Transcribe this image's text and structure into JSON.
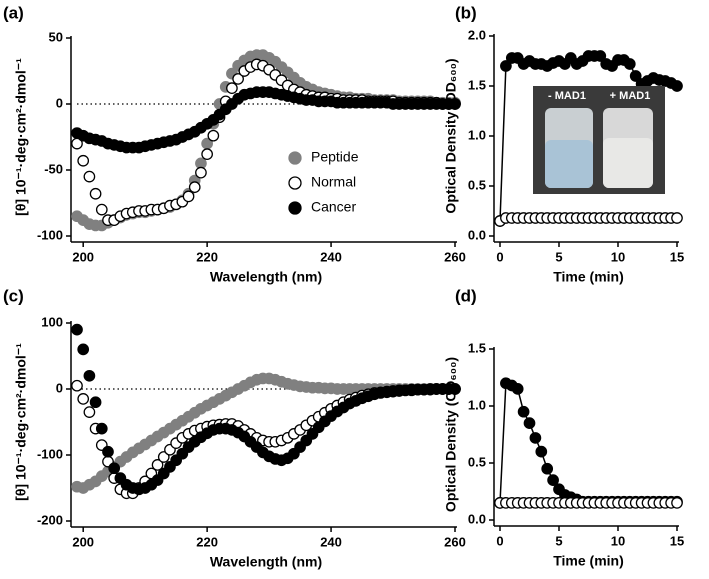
{
  "chart_data": [
    {
      "type": "scatter",
      "label": "(a)",
      "xlabel": "Wavelength (nm)",
      "ylabel": "[θ] 10⁻¹·deg·cm²·dmol⁻¹",
      "xlim": [
        199,
        260
      ],
      "ylim": [
        -100,
        50
      ],
      "xticks": [
        200,
        220,
        240,
        260
      ],
      "yticks": [
        -100,
        -50,
        0,
        50
      ],
      "reference_line": 0,
      "legend": "lower right",
      "x": [
        199,
        200,
        201,
        202,
        203,
        204,
        205,
        206,
        207,
        208,
        209,
        210,
        211,
        212,
        213,
        214,
        215,
        216,
        217,
        218,
        219,
        220,
        221,
        222,
        223,
        224,
        225,
        226,
        227,
        228,
        229,
        230,
        231,
        232,
        233,
        234,
        235,
        236,
        237,
        238,
        239,
        240,
        241,
        242,
        243,
        244,
        245,
        246,
        247,
        248,
        249,
        250,
        251,
        252,
        253,
        254,
        255,
        256,
        257,
        258,
        259,
        260
      ],
      "series": [
        {
          "name": "Peptide",
          "color": "#808080",
          "line": false,
          "values": [
            -85,
            -88,
            -91,
            -92,
            -92,
            -90,
            -88,
            -86,
            -84,
            -83,
            -82,
            -82,
            -81,
            -80,
            -79,
            -78,
            -76,
            -73,
            -68,
            -58,
            -45,
            -30,
            -15,
            0,
            13,
            23,
            29,
            33,
            36,
            37,
            37,
            35,
            32,
            28,
            24,
            20,
            16,
            13,
            11,
            9,
            8,
            7,
            6,
            5,
            5,
            4,
            4,
            4,
            3,
            3,
            3,
            3,
            2,
            2,
            2,
            2,
            2,
            2,
            1,
            1,
            1,
            1
          ]
        },
        {
          "name": "Normal",
          "color": "#ffffff",
          "line": false,
          "values": [
            -30,
            -43,
            -55,
            -68,
            -80,
            -88,
            -88,
            -85,
            -83,
            -82,
            -81,
            -81,
            -80,
            -80,
            -79,
            -77,
            -76,
            -74,
            -70,
            -63,
            -52,
            -38,
            -24,
            -10,
            2,
            12,
            19,
            25,
            28,
            30,
            29,
            26,
            22,
            18,
            14,
            11,
            9,
            7,
            6,
            5,
            5,
            4,
            4,
            3,
            3,
            3,
            3,
            2,
            2,
            2,
            2,
            2,
            1,
            1,
            1,
            1,
            1,
            1,
            1,
            0,
            0,
            0
          ]
        },
        {
          "name": "Cancer",
          "color": "#000000",
          "line": false,
          "values": [
            -22,
            -24,
            -26,
            -27,
            -28,
            -30,
            -31,
            -32,
            -33,
            -33,
            -33,
            -32,
            -31,
            -30,
            -29,
            -28,
            -27,
            -25,
            -23,
            -21,
            -18,
            -15,
            -12,
            -8,
            -4,
            0,
            4,
            7,
            8,
            9,
            9,
            9,
            8,
            7,
            6,
            5,
            4,
            3,
            3,
            2,
            2,
            2,
            1,
            1,
            1,
            1,
            1,
            1,
            1,
            1,
            1,
            0,
            0,
            0,
            0,
            0,
            0,
            0,
            0,
            0,
            0,
            0
          ]
        }
      ]
    },
    {
      "type": "scatter",
      "label": "(b)",
      "xlabel": "Time (min)",
      "ylabel": "Optical  Density  (OD₆₀₀)",
      "xlim": [
        0,
        15
      ],
      "ylim": [
        0,
        2
      ],
      "xticks": [
        0,
        5,
        10,
        15
      ],
      "yticks": [
        {
          "value": 0,
          "label": "0.0"
        },
        {
          "value": 0.5,
          "label": "0.5"
        },
        {
          "value": 1,
          "label": "1.0"
        },
        {
          "value": 1.5,
          "label": "1.5"
        },
        {
          "value": 2,
          "label": "2.0"
        }
      ],
      "inset_labels": [
        "- MAD1",
        "+ MAD1"
      ],
      "x": [
        0,
        0.5,
        1,
        1.5,
        2,
        2.5,
        3,
        3.5,
        4,
        4.5,
        5,
        5.5,
        6,
        6.5,
        7,
        7.5,
        8,
        8.5,
        9,
        9.5,
        10,
        10.5,
        11,
        11.5,
        12,
        12.5,
        13,
        13.5,
        14,
        14.5,
        15
      ],
      "series": [
        {
          "color": "#000000",
          "line": true,
          "values": [
            0.15,
            1.7,
            1.78,
            1.78,
            1.72,
            1.75,
            1.72,
            1.72,
            1.7,
            1.73,
            1.75,
            1.72,
            1.78,
            1.72,
            1.75,
            1.8,
            1.8,
            1.8,
            1.72,
            1.7,
            1.76,
            1.76,
            1.72,
            1.6,
            1.52,
            1.55,
            1.58,
            1.56,
            1.55,
            1.53,
            1.5
          ]
        },
        {
          "color": "#ffffff",
          "line": false,
          "values": [
            0.15,
            0.18,
            0.18,
            0.18,
            0.18,
            0.18,
            0.18,
            0.18,
            0.18,
            0.18,
            0.18,
            0.18,
            0.18,
            0.18,
            0.18,
            0.18,
            0.18,
            0.18,
            0.18,
            0.18,
            0.18,
            0.18,
            0.18,
            0.18,
            0.18,
            0.18,
            0.18,
            0.18,
            0.18,
            0.18,
            0.18
          ]
        }
      ]
    },
    {
      "type": "scatter",
      "label": "(c)",
      "xlabel": "Wavelength (nm)",
      "ylabel": "[θ] 10⁻¹·deg·cm²·dmol⁻¹",
      "xlim": [
        199,
        260
      ],
      "ylim": [
        -200,
        100
      ],
      "xticks": [
        200,
        220,
        240,
        260
      ],
      "yticks": [
        -200,
        -100,
        0,
        100
      ],
      "reference_line": 0,
      "x": [
        199,
        200,
        201,
        202,
        203,
        204,
        205,
        206,
        207,
        208,
        209,
        210,
        211,
        212,
        213,
        214,
        215,
        216,
        217,
        218,
        219,
        220,
        221,
        222,
        223,
        224,
        225,
        226,
        227,
        228,
        229,
        230,
        231,
        232,
        233,
        234,
        235,
        236,
        237,
        238,
        239,
        240,
        241,
        242,
        243,
        244,
        245,
        246,
        247,
        248,
        249,
        250,
        251,
        252,
        253,
        254,
        255,
        256,
        257,
        258,
        259,
        260
      ],
      "series": [
        {
          "color": "#808080",
          "line": false,
          "values": [
            -148,
            -150,
            -145,
            -140,
            -132,
            -125,
            -118,
            -110,
            -103,
            -96,
            -90,
            -84,
            -78,
            -72,
            -66,
            -60,
            -54,
            -48,
            -42,
            -36,
            -30,
            -25,
            -20,
            -15,
            -10,
            -5,
            0,
            5,
            10,
            14,
            16,
            16,
            14,
            11,
            8,
            6,
            4,
            3,
            2,
            2,
            1,
            1,
            0,
            0,
            0,
            0,
            0,
            0,
            0,
            0,
            0,
            0,
            0,
            0,
            0,
            0,
            0,
            0,
            0,
            0,
            0,
            0
          ]
        },
        {
          "color": "#ffffff",
          "line": false,
          "values": [
            5,
            -15,
            -35,
            -60,
            -85,
            -110,
            -135,
            -152,
            -158,
            -158,
            -150,
            -140,
            -128,
            -115,
            -103,
            -92,
            -82,
            -74,
            -68,
            -63,
            -60,
            -57,
            -55,
            -54,
            -53,
            -53,
            -56,
            -62,
            -68,
            -74,
            -78,
            -80,
            -80,
            -78,
            -74,
            -68,
            -62,
            -55,
            -48,
            -42,
            -36,
            -30,
            -25,
            -20,
            -16,
            -13,
            -10,
            -8,
            -6,
            -5,
            -4,
            -3,
            -2,
            -2,
            -1,
            -1,
            -1,
            0,
            0,
            0,
            0,
            0
          ]
        },
        {
          "color": "#000000",
          "line": false,
          "values": [
            90,
            60,
            20,
            -20,
            -60,
            -95,
            -120,
            -135,
            -145,
            -150,
            -152,
            -150,
            -145,
            -138,
            -128,
            -118,
            -108,
            -98,
            -88,
            -80,
            -73,
            -67,
            -62,
            -60,
            -60,
            -62,
            -66,
            -72,
            -80,
            -88,
            -96,
            -102,
            -106,
            -108,
            -105,
            -98,
            -88,
            -78,
            -68,
            -58,
            -49,
            -41,
            -34,
            -28,
            -22,
            -18,
            -14,
            -11,
            -8,
            -6,
            -5,
            -4,
            -3,
            -2,
            -2,
            -1,
            -1,
            -1,
            0,
            0,
            0,
            0
          ]
        }
      ]
    },
    {
      "type": "scatter",
      "label": "(d)",
      "xlabel": "Time (min)",
      "ylabel": "Optical  Density  (OD₆₀₀)",
      "xlim": [
        0,
        15
      ],
      "ylim": [
        0,
        1.5
      ],
      "xticks": [
        0,
        5,
        10,
        15
      ],
      "yticks": [
        {
          "value": 0,
          "label": "0.0"
        },
        {
          "value": 0.5,
          "label": "0.5"
        },
        {
          "value": 1,
          "label": "1.0"
        },
        {
          "value": 1.5,
          "label": "1.5"
        }
      ],
      "x": [
        0,
        0.5,
        1,
        1.5,
        2,
        2.5,
        3,
        3.5,
        4,
        4.5,
        5,
        5.5,
        6,
        6.5,
        7,
        7.5,
        8,
        8.5,
        9,
        9.5,
        10,
        10.5,
        11,
        11.5,
        12,
        12.5,
        13,
        13.5,
        14,
        14.5,
        15
      ],
      "series": [
        {
          "color": "#000000",
          "line": true,
          "values": [
            0.15,
            1.2,
            1.18,
            1.15,
            0.95,
            0.85,
            0.72,
            0.6,
            0.45,
            0.35,
            0.27,
            0.22,
            0.2,
            0.18,
            0.16,
            0.16,
            0.16,
            0.16,
            0.16,
            0.16,
            0.16,
            0.16,
            0.16,
            0.16,
            0.16,
            0.16,
            0.16,
            0.16,
            0.16,
            0.16,
            0.16
          ]
        },
        {
          "color": "#ffffff",
          "line": false,
          "values": [
            0.15,
            0.15,
            0.15,
            0.15,
            0.15,
            0.15,
            0.15,
            0.15,
            0.15,
            0.15,
            0.15,
            0.15,
            0.15,
            0.15,
            0.15,
            0.15,
            0.15,
            0.15,
            0.15,
            0.15,
            0.15,
            0.15,
            0.15,
            0.15,
            0.15,
            0.15,
            0.15,
            0.15,
            0.15,
            0.15,
            0.15
          ]
        }
      ]
    }
  ]
}
